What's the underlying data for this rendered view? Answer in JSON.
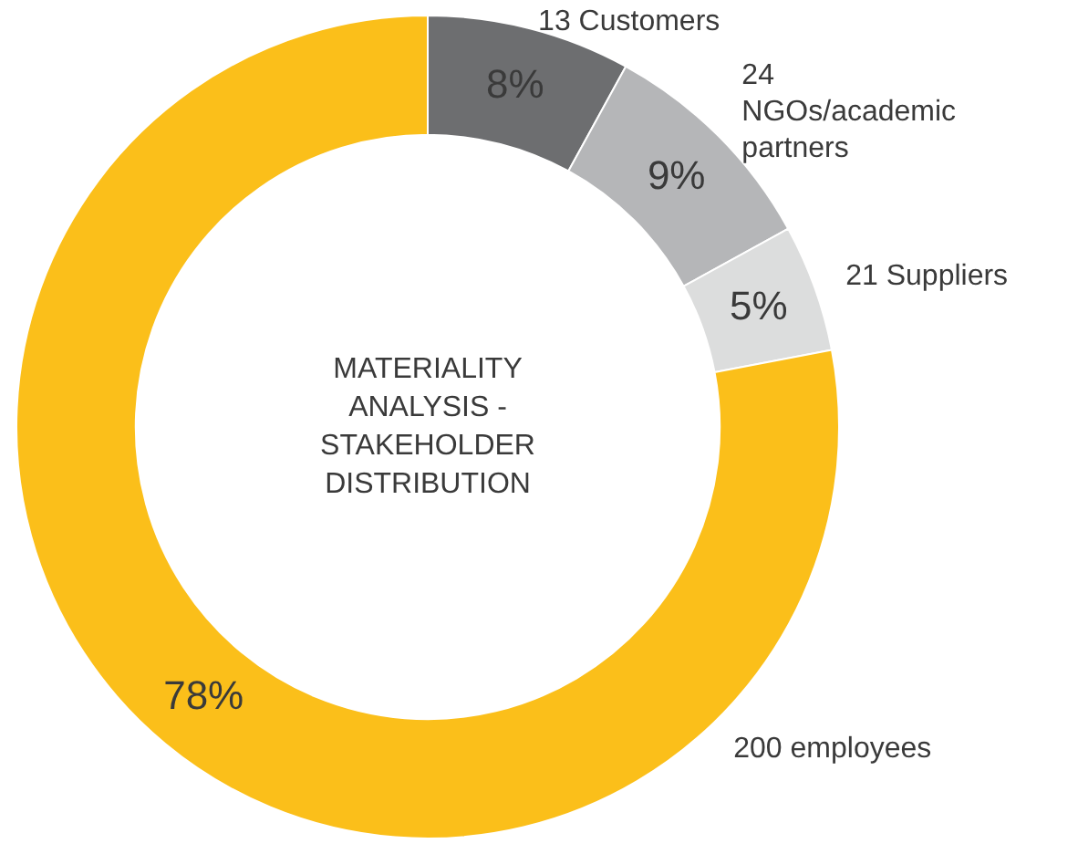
{
  "chart_data": {
    "type": "donut",
    "title": "MATERIALITY ANALYSIS - STAKEHOLDER DISTRIBUTION",
    "categories": [
      "13 Customers",
      "24 NGOs/academic partners",
      "21 Suppliers",
      "200 employees"
    ],
    "values": [
      8,
      9,
      5,
      78
    ],
    "colors": [
      "#6d6e70",
      "#b5b6b8",
      "#dcdddd",
      "#fbbf1a"
    ],
    "value_labels": [
      "8%",
      "9%",
      "5%",
      "78%"
    ],
    "legend": false
  }
}
